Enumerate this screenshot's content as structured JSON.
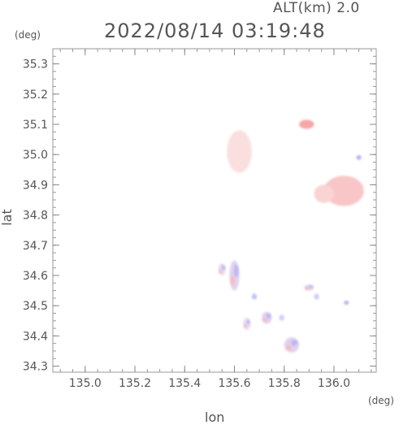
{
  "header": {
    "altitude_label": "ALT(km) 2.0",
    "datetime": "2022/08/14 03:19:48"
  },
  "axes": {
    "y_unit": "(deg)",
    "x_unit": "(deg)",
    "xlabel": "lon",
    "ylabel": "lat"
  },
  "chart_data": {
    "type": "heatmap",
    "xlabel": "lon",
    "ylabel": "lat",
    "xlim": [
      134.87,
      136.17
    ],
    "ylim": [
      34.28,
      35.35
    ],
    "xticks": [
      135.0,
      135.2,
      135.4,
      135.6,
      135.8,
      136.0
    ],
    "yticks": [
      34.3,
      34.4,
      34.5,
      34.6,
      34.7,
      34.8,
      34.9,
      35.0,
      35.1,
      35.2,
      35.3
    ],
    "xtick_labels": [
      "135.0",
      "135.2",
      "135.4",
      "135.6",
      "135.8",
      "136.0"
    ],
    "ytick_labels": [
      "34.3",
      "34.4",
      "34.5",
      "34.6",
      "34.7",
      "34.8",
      "34.9",
      "35.0",
      "35.1",
      "35.2",
      "35.3"
    ],
    "grid": false,
    "colors": {
      "positive": "#f08080",
      "negative": "#8080f0",
      "light_positive": "#f9d4d4"
    },
    "echo_regions": [
      {
        "lon": 135.62,
        "lat": 35.01,
        "rx": 0.05,
        "ry": 0.07,
        "polarity": "positive",
        "intensity": 0.25
      },
      {
        "lon": 135.89,
        "lat": 35.1,
        "rx": 0.03,
        "ry": 0.015,
        "polarity": "positive",
        "intensity": 0.7
      },
      {
        "lon": 136.04,
        "lat": 34.88,
        "rx": 0.08,
        "ry": 0.05,
        "polarity": "positive",
        "intensity": 0.45
      },
      {
        "lon": 135.96,
        "lat": 34.87,
        "rx": 0.04,
        "ry": 0.03,
        "polarity": "positive",
        "intensity": 0.35
      },
      {
        "lon": 135.6,
        "lat": 34.6,
        "rx": 0.02,
        "ry": 0.05,
        "polarity": "mixed",
        "intensity": 0.5
      },
      {
        "lon": 135.55,
        "lat": 34.62,
        "rx": 0.015,
        "ry": 0.02,
        "polarity": "mixed",
        "intensity": 0.4
      },
      {
        "lon": 135.68,
        "lat": 34.53,
        "rx": 0.01,
        "ry": 0.01,
        "polarity": "negative",
        "intensity": 0.5
      },
      {
        "lon": 135.73,
        "lat": 34.46,
        "rx": 0.02,
        "ry": 0.02,
        "polarity": "mixed",
        "intensity": 0.5
      },
      {
        "lon": 135.79,
        "lat": 34.46,
        "rx": 0.01,
        "ry": 0.01,
        "polarity": "negative",
        "intensity": 0.4
      },
      {
        "lon": 135.65,
        "lat": 34.44,
        "rx": 0.015,
        "ry": 0.02,
        "polarity": "mixed",
        "intensity": 0.4
      },
      {
        "lon": 135.83,
        "lat": 34.37,
        "rx": 0.03,
        "ry": 0.025,
        "polarity": "mixed",
        "intensity": 0.5
      },
      {
        "lon": 135.9,
        "lat": 34.56,
        "rx": 0.02,
        "ry": 0.01,
        "polarity": "mixed",
        "intensity": 0.5
      },
      {
        "lon": 136.05,
        "lat": 34.51,
        "rx": 0.01,
        "ry": 0.007,
        "polarity": "negative",
        "intensity": 0.6
      },
      {
        "lon": 136.1,
        "lat": 34.99,
        "rx": 0.01,
        "ry": 0.008,
        "polarity": "negative",
        "intensity": 0.6
      },
      {
        "lon": 135.93,
        "lat": 34.53,
        "rx": 0.01,
        "ry": 0.01,
        "polarity": "negative",
        "intensity": 0.4
      }
    ]
  }
}
